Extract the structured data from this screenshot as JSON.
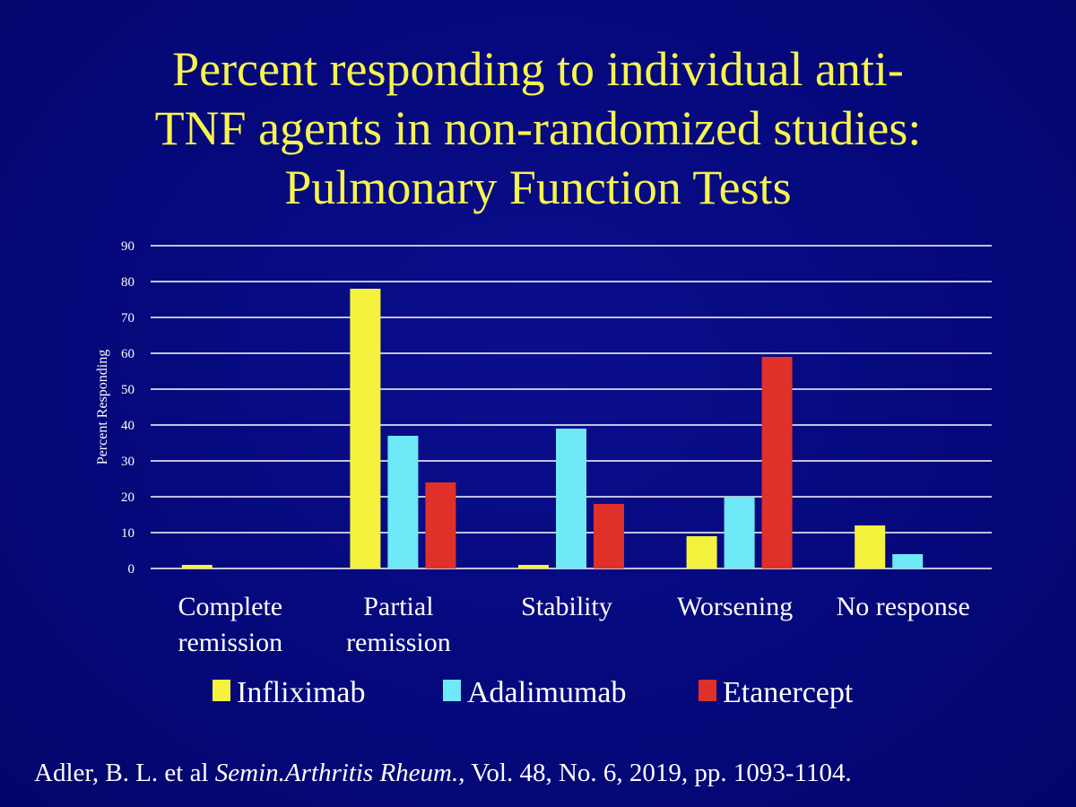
{
  "title_lines": [
    "Percent responding to individual anti-",
    "TNF agents in non-randomized studies:",
    "Pulmonary Function Tests"
  ],
  "citation": {
    "authors": "Adler, B. L. et al ",
    "journal": "Semin.Arthritis Rheum.",
    "details": ", Vol. 48, No. 6, 2019, pp. 1093-1104."
  },
  "colors": {
    "background": "#05087a",
    "title": "#f7f44d",
    "text": "#ffffff",
    "gridline": "#ffffff"
  },
  "chart_data": {
    "type": "bar",
    "title": "Percent responding to individual anti-TNF agents in non-randomized studies: Pulmonary Function Tests",
    "ylabel": "Percent Responding",
    "xlabel": "",
    "ylim": [
      0,
      90
    ],
    "yticks": [
      0,
      10,
      20,
      30,
      40,
      50,
      60,
      70,
      80,
      90
    ],
    "grid": true,
    "legend_position": "bottom",
    "categories": [
      [
        "Complete",
        "remission"
      ],
      [
        "Partial",
        "remission"
      ],
      [
        "Stability"
      ],
      [
        "Worsening"
      ],
      [
        "No response"
      ]
    ],
    "series": [
      {
        "name": "Infliximab",
        "color": "#f5f23e",
        "values": [
          1,
          78,
          1,
          9,
          12
        ]
      },
      {
        "name": "Adalimumab",
        "color": "#6fe8f7",
        "values": [
          0,
          37,
          39,
          20,
          4
        ]
      },
      {
        "name": "Etanercept",
        "color": "#e0302a",
        "values": [
          0,
          24,
          18,
          59,
          0
        ]
      }
    ]
  }
}
